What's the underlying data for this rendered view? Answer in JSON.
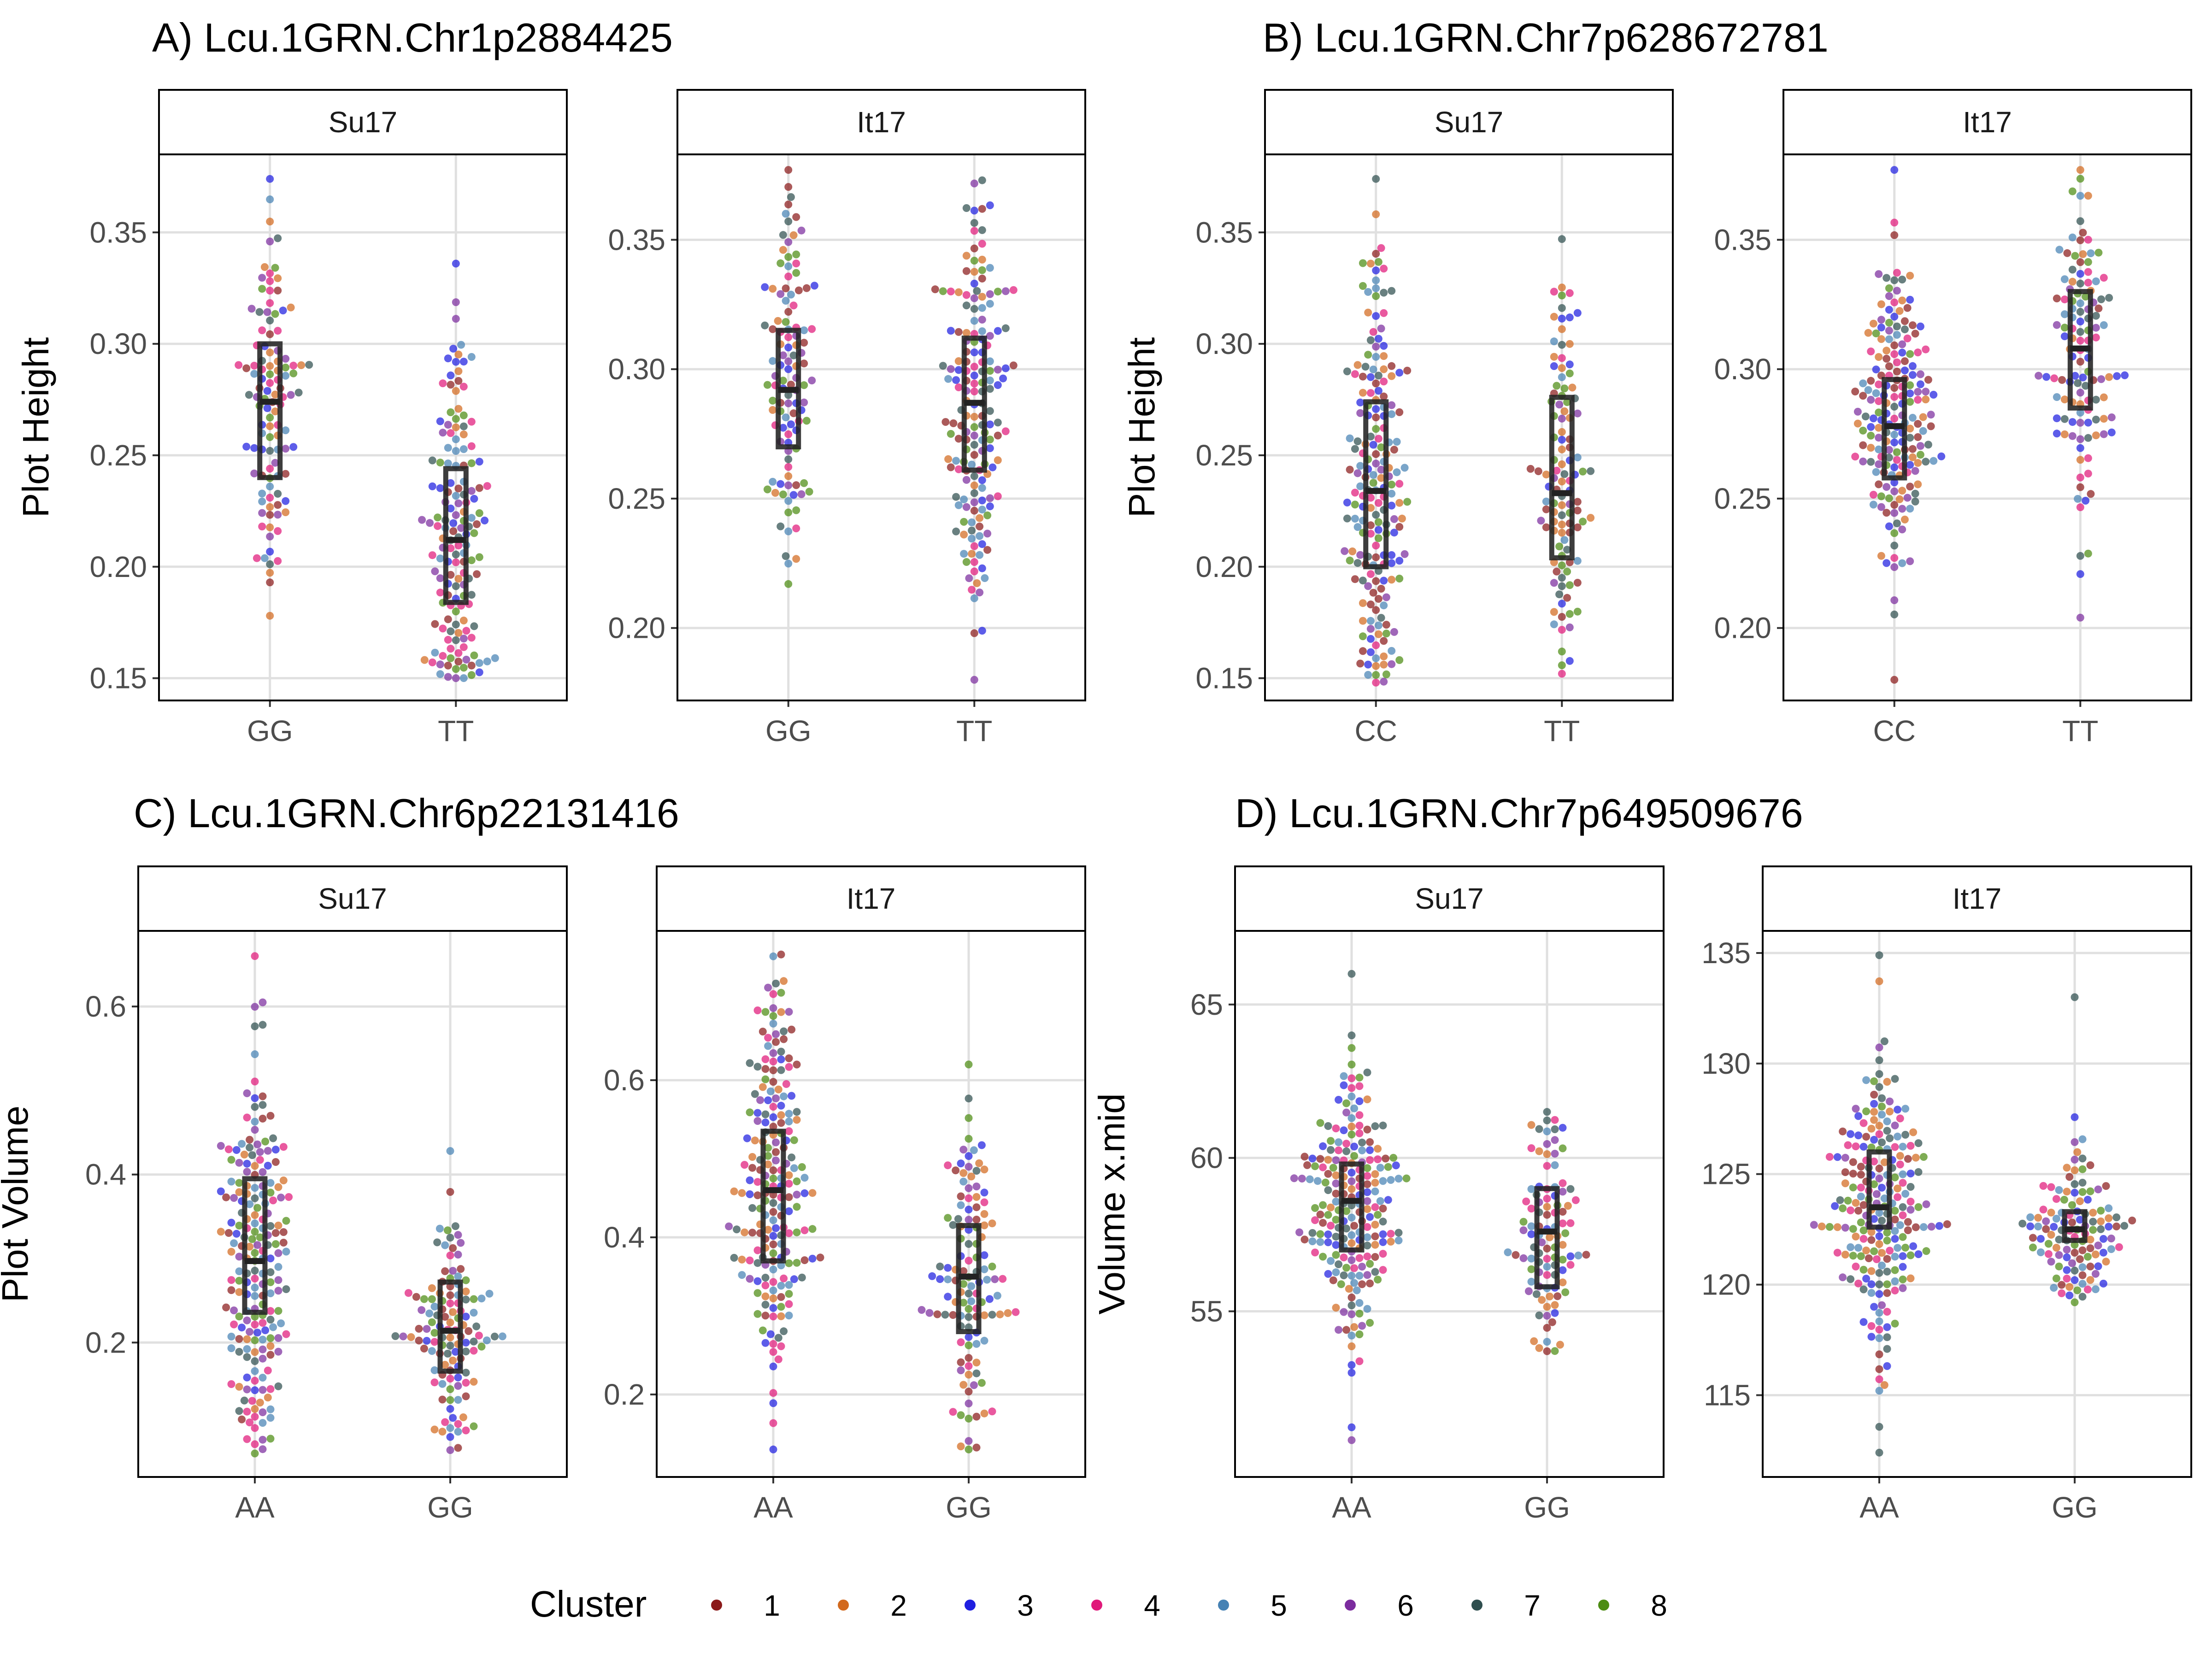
{
  "legend": {
    "title": "Cluster",
    "items": [
      {
        "label": "1",
        "color": "#8B1A1A"
      },
      {
        "label": "2",
        "color": "#D2691E"
      },
      {
        "label": "3",
        "color": "#1F1FE0"
      },
      {
        "label": "4",
        "color": "#E0197A"
      },
      {
        "label": "5",
        "color": "#4682B4"
      },
      {
        "label": "6",
        "color": "#7B2C9E"
      },
      {
        "label": "7",
        "color": "#2F4F4F"
      },
      {
        "label": "8",
        "color": "#4C8C12"
      }
    ]
  },
  "chart_data": [
    {
      "type": "scatter",
      "title": "A) Lcu.1GRN.Chr1p2884425",
      "ylabel": "Plot Height",
      "facets": [
        {
          "strip": "Su17",
          "ylim": [
            0.14,
            0.385
          ],
          "yticks": [
            "0.15",
            "0.20",
            "0.25",
            "0.30",
            "0.35"
          ],
          "categories": [
            "GG",
            "TT"
          ],
          "groups": [
            {
              "n": 110,
              "median": 0.274,
              "q1": 0.24,
              "q3": 0.3,
              "min": 0.178,
              "max": 0.374
            },
            {
              "n": 150,
              "median": 0.212,
              "q1": 0.184,
              "q3": 0.244,
              "min": 0.15,
              "max": 0.336
            }
          ]
        },
        {
          "strip": "It17",
          "ylim": [
            0.172,
            0.383
          ],
          "yticks": [
            "0.20",
            "0.25",
            "0.30",
            "0.35"
          ],
          "categories": [
            "GG",
            "TT"
          ],
          "groups": [
            {
              "n": 110,
              "median": 0.292,
              "q1": 0.27,
              "q3": 0.315,
              "min": 0.217,
              "max": 0.377
            },
            {
              "n": 170,
              "median": 0.287,
              "q1": 0.261,
              "q3": 0.312,
              "min": 0.18,
              "max": 0.373
            }
          ]
        }
      ]
    },
    {
      "type": "scatter",
      "title": "B) Lcu.1GRN.Chr7p628672781",
      "ylabel": "Plot Height",
      "facets": [
        {
          "strip": "Su17",
          "ylim": [
            0.14,
            0.385
          ],
          "yticks": [
            "0.15",
            "0.20",
            "0.25",
            "0.30",
            "0.35"
          ],
          "categories": [
            "CC",
            "TT"
          ],
          "groups": [
            {
              "n": 190,
              "median": 0.234,
              "q1": 0.2,
              "q3": 0.274,
              "min": 0.148,
              "max": 0.374
            },
            {
              "n": 110,
              "median": 0.233,
              "q1": 0.204,
              "q3": 0.276,
              "min": 0.152,
              "max": 0.347
            }
          ]
        },
        {
          "strip": "It17",
          "ylim": [
            0.172,
            0.383
          ],
          "yticks": [
            "0.20",
            "0.25",
            "0.30",
            "0.35"
          ],
          "categories": [
            "CC",
            "TT"
          ],
          "groups": [
            {
              "n": 190,
              "median": 0.278,
              "q1": 0.258,
              "q3": 0.296,
              "min": 0.18,
              "max": 0.377
            },
            {
              "n": 120,
              "median": 0.308,
              "q1": 0.285,
              "q3": 0.33,
              "min": 0.204,
              "max": 0.377
            }
          ]
        }
      ]
    },
    {
      "type": "scatter",
      "title": "C) Lcu.1GRN.Chr6p22131416",
      "ylabel": "Plot Volume",
      "facets": [
        {
          "strip": "Su17",
          "ylim": [
            0.04,
            0.69
          ],
          "yticks": [
            "0.2",
            "0.4",
            "0.6"
          ],
          "categories": [
            "AA",
            "GG"
          ],
          "groups": [
            {
              "n": 200,
              "median": 0.297,
              "q1": 0.236,
              "q3": 0.395,
              "min": 0.068,
              "max": 0.66
            },
            {
              "n": 120,
              "median": 0.214,
              "q1": 0.166,
              "q3": 0.272,
              "min": 0.072,
              "max": 0.428
            }
          ]
        },
        {
          "strip": "It17",
          "ylim": [
            0.095,
            0.79
          ],
          "yticks": [
            "0.2",
            "0.4",
            "0.6"
          ],
          "categories": [
            "AA",
            "GG"
          ],
          "groups": [
            {
              "n": 200,
              "median": 0.46,
              "q1": 0.37,
              "q3": 0.535,
              "min": 0.13,
              "max": 0.76
            },
            {
              "n": 120,
              "median": 0.35,
              "q1": 0.28,
              "q3": 0.415,
              "min": 0.13,
              "max": 0.62
            }
          ]
        }
      ]
    },
    {
      "type": "scatter",
      "title": "D) Lcu.1GRN.Chr7p649509676",
      "ylabel": "Volume x.mid",
      "facets": [
        {
          "strip": "Su17",
          "ylim": [
            49.6,
            67.4
          ],
          "yticks": [
            "55",
            "60",
            "65"
          ],
          "categories": [
            "AA",
            "GG"
          ],
          "groups": [
            {
              "n": 210,
              "median": 58.6,
              "q1": 57.0,
              "q3": 59.8,
              "min": 50.8,
              "max": 66.0
            },
            {
              "n": 100,
              "median": 57.6,
              "q1": 55.8,
              "q3": 59.0,
              "min": 53.7,
              "max": 61.5
            }
          ]
        },
        {
          "strip": "It17",
          "ylim": [
            111.3,
            136.0
          ],
          "yticks": [
            "115",
            "120",
            "125",
            "130",
            "135"
          ],
          "categories": [
            "AA",
            "GG"
          ],
          "groups": [
            {
              "n": 220,
              "median": 123.5,
              "q1": 122.6,
              "q3": 126.0,
              "min": 112.4,
              "max": 134.9
            },
            {
              "n": 120,
              "median": 122.5,
              "q1": 122.0,
              "q3": 123.3,
              "min": 119.2,
              "max": 133.0
            }
          ]
        }
      ]
    }
  ]
}
